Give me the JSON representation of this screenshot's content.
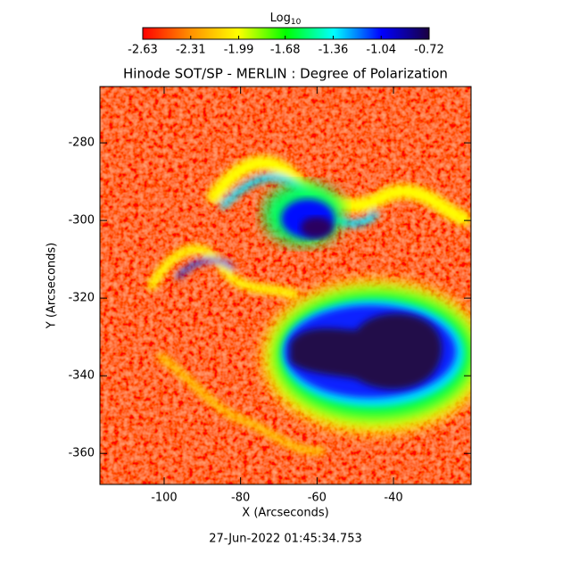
{
  "chart_data": {
    "type": "image",
    "title": "Hinode SOT/SP - MERLIN : Degree of Polarization",
    "x_label": "X (Arcseconds)",
    "y_label": "Y (Arcseconds)",
    "footer": "27-Jun-2022 01:45:34.753",
    "xlim": [
      -116.8,
      -19.7
    ],
    "xticks": [
      -100,
      -80,
      -60,
      -40
    ],
    "ylim": [
      -368,
      -265.5
    ],
    "yticks": [
      -360,
      -340,
      -320,
      -300,
      -280
    ],
    "colorbar_label": "Log",
    "colorbar_label_sub": "10",
    "colorbar_lim": [
      -2.63,
      -0.72
    ],
    "colorbar_ticks": [
      -2.63,
      -2.31,
      -1.99,
      -1.68,
      -1.36,
      -1.04,
      -0.72
    ],
    "colormap": [
      "#ff0000",
      "#ff9000",
      "#ffff00",
      "#00ff00",
      "#00ffff",
      "#0000ff",
      "#1a0040"
    ]
  }
}
